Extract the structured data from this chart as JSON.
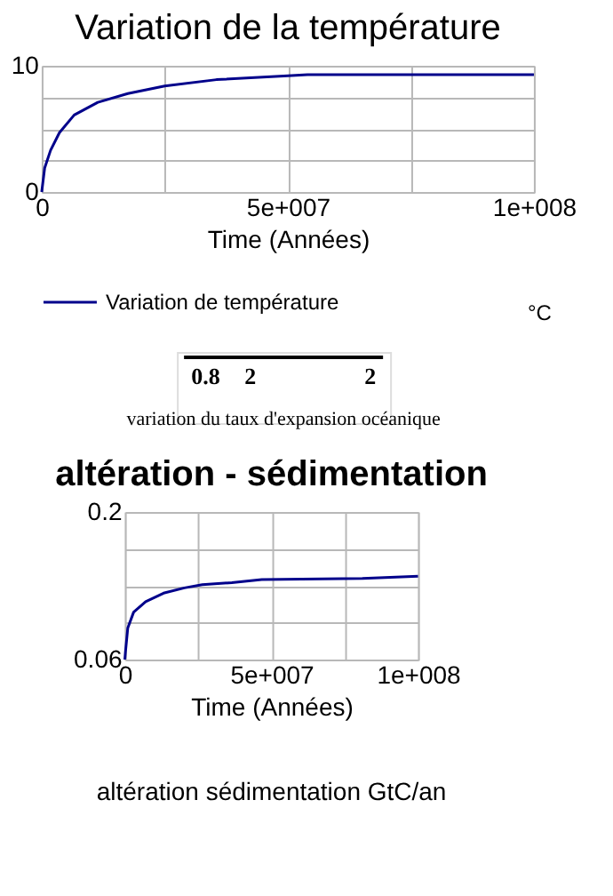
{
  "chart_data": [
    {
      "type": "line",
      "title": "Variation de la température",
      "xlabel": "Time (Années)",
      "xlim": [
        0,
        100000000
      ],
      "xticks": [
        0,
        {
          "value": 25000000,
          "label": null
        },
        {
          "value": 50000000,
          "label": "5e+007"
        },
        {
          "value": 75000000,
          "label": null
        },
        {
          "value": 100000000,
          "label": "1e+008"
        }
      ],
      "ylim": [
        0,
        10
      ],
      "yticks": [
        0,
        {
          "value": 2.5,
          "label": null
        },
        {
          "value": 5,
          "label": null
        },
        {
          "value": 7.5,
          "label": null
        },
        10
      ],
      "grid": true,
      "legend": "bottom",
      "annotations": [
        "°C"
      ],
      "series": [
        {
          "name": "Variation de température",
          "color": "#00008b",
          "x": [
            0,
            600000,
            1800000,
            3600000,
            6600000,
            11400000,
            17500000,
            25000000,
            35500000,
            50000000,
            54000000,
            100000000
          ],
          "values": [
            0,
            1.9,
            3.3,
            4.7,
            6.1,
            7.1,
            7.8,
            8.4,
            8.9,
            9.2,
            9.3,
            9.3
          ]
        }
      ]
    },
    {
      "type": "other",
      "annotations": [
        "0.8",
        "2",
        "2",
        "variation du taux d'expansion océanique"
      ]
    },
    {
      "type": "line",
      "title": "altération  - sédimentation",
      "xlabel": "Time (Années)",
      "xlim": [
        0,
        100000000
      ],
      "xticks": [
        0,
        {
          "value": 25000000,
          "label": null
        },
        {
          "value": 50000000,
          "label": "5e+007"
        },
        {
          "value": 75000000,
          "label": null
        },
        {
          "value": 100000000,
          "label": "1e+008"
        }
      ],
      "ylim": [
        0.06,
        0.2
      ],
      "yticks": [
        0.06,
        {
          "value": 0.095,
          "label": null
        },
        {
          "value": 0.13,
          "label": null
        },
        {
          "value": 0.165,
          "label": null
        },
        0.2
      ],
      "grid": true,
      "annotations": [
        "altération sédimentation GtC/an"
      ],
      "series": [
        {
          "color": "#00008b",
          "x": [
            0,
            200000,
            1000000,
            3000000,
            7100000,
            13200000,
            20300000,
            26400000,
            36500000,
            46700000,
            81000000,
            100000000
          ],
          "values": [
            0.06,
            0.067,
            0.09,
            0.105,
            0.115,
            0.123,
            0.128,
            0.131,
            0.133,
            0.136,
            0.137,
            0.139
          ]
        }
      ]
    }
  ]
}
